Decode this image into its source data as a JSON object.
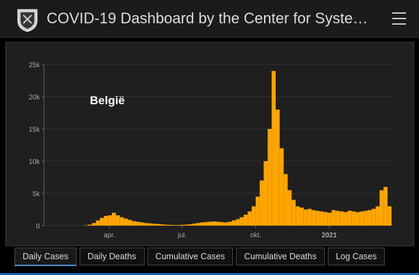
{
  "header": {
    "title": "COVID-19 Dashboard by the Center for Syste…"
  },
  "chart_data": {
    "type": "bar",
    "annotation": "België",
    "color": "#ffa500",
    "x": [
      0,
      5,
      10,
      15,
      20,
      25,
      30,
      35,
      40,
      45,
      50,
      55,
      60,
      65,
      70,
      75,
      80,
      85,
      90,
      95,
      100,
      105,
      110,
      115,
      120,
      125,
      130,
      135,
      140,
      145,
      150,
      155,
      160,
      165,
      170,
      175,
      180,
      185,
      190,
      195,
      200,
      205,
      210,
      215,
      220,
      225,
      230,
      235,
      240,
      245,
      250,
      255,
      260,
      265,
      270,
      275,
      280,
      285,
      290,
      295,
      300,
      305,
      310,
      315,
      320,
      325,
      330,
      335,
      340,
      345,
      350,
      355,
      360,
      365,
      370,
      375,
      380,
      385,
      390,
      395,
      400,
      405,
      410,
      415,
      420,
      425,
      430
    ],
    "values": [
      0,
      0,
      0,
      0,
      0,
      0,
      0,
      0,
      0,
      0,
      50,
      150,
      400,
      800,
      1200,
      1500,
      1600,
      2000,
      1600,
      1300,
      1100,
      900,
      700,
      600,
      500,
      400,
      350,
      300,
      250,
      200,
      150,
      120,
      100,
      100,
      120,
      150,
      200,
      300,
      400,
      500,
      550,
      600,
      650,
      600,
      550,
      500,
      600,
      800,
      1000,
      1300,
      1700,
      2200,
      3000,
      4500,
      7000,
      10000,
      15000,
      24000,
      18000,
      12000,
      8000,
      5500,
      4000,
      3000,
      2800,
      2500,
      2600,
      2400,
      2300,
      2200,
      2100,
      2000,
      2400,
      2300,
      2200,
      2100,
      2300,
      2200,
      2100,
      2200,
      2300,
      2400,
      2600,
      3000,
      5500,
      6000,
      3000
    ],
    "xlim": [
      0,
      435
    ],
    "xticks": [
      {
        "value": 82,
        "label": "apr."
      },
      {
        "value": 173,
        "label": "jul."
      },
      {
        "value": 265,
        "label": "okt."
      },
      {
        "value": 357,
        "label": "2021"
      }
    ],
    "ylim": [
      0,
      25000
    ],
    "yticks": [
      0,
      {
        "value": 5000,
        "label": "5k"
      },
      {
        "value": 10000,
        "label": "10k"
      },
      {
        "value": 15000,
        "label": "15k"
      },
      {
        "value": 20000,
        "label": "20k"
      },
      {
        "value": 25000,
        "label": "25k"
      }
    ],
    "grid": true
  },
  "tabs": [
    "Daily Cases",
    "Daily Deaths",
    "Cumulative Cases",
    "Cumulative Deaths",
    "Log Cases"
  ],
  "selected_tab": 0
}
